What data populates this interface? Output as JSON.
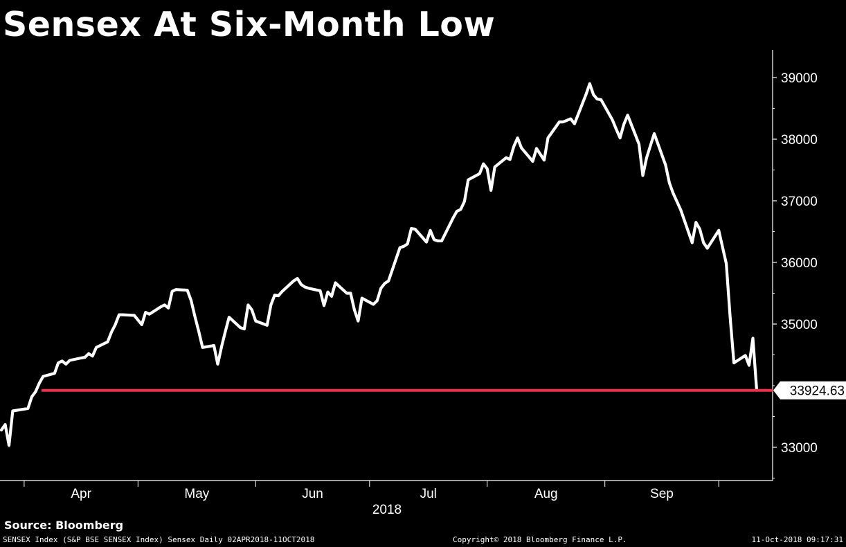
{
  "chart_data": {
    "type": "line",
    "title": "Sensex At Six-Month Low",
    "year_label": "2018",
    "x_tick_labels": [
      "Apr",
      "May",
      "Jun",
      "Jul",
      "Aug",
      "Sep"
    ],
    "y_tick_labels": [
      "39000",
      "38000",
      "37000",
      "36000",
      "35000",
      "33000"
    ],
    "ylim": [
      32500,
      39500
    ],
    "grid": false,
    "axis_side": "right",
    "series": [
      {
        "x": [
          "2018-03-26",
          "2018-03-27",
          "2018-03-28",
          "2018-03-29",
          "2018-04-02",
          "2018-04-03",
          "2018-04-04",
          "2018-04-05",
          "2018-04-06",
          "2018-04-09",
          "2018-04-10",
          "2018-04-11",
          "2018-04-12",
          "2018-04-13",
          "2018-04-16",
          "2018-04-17",
          "2018-04-18",
          "2018-04-19",
          "2018-04-20",
          "2018-04-23",
          "2018-04-24",
          "2018-04-25",
          "2018-04-26",
          "2018-04-27",
          "2018-04-30",
          "2018-05-02",
          "2018-05-03",
          "2018-05-04",
          "2018-05-07",
          "2018-05-08",
          "2018-05-09",
          "2018-05-10",
          "2018-05-11",
          "2018-05-14",
          "2018-05-15",
          "2018-05-16",
          "2018-05-17",
          "2018-05-18",
          "2018-05-21",
          "2018-05-22",
          "2018-05-23",
          "2018-05-24",
          "2018-05-25",
          "2018-05-28",
          "2018-05-29",
          "2018-05-30",
          "2018-05-31",
          "2018-06-01",
          "2018-06-04",
          "2018-06-05",
          "2018-06-06",
          "2018-06-07",
          "2018-06-08",
          "2018-06-11",
          "2018-06-12",
          "2018-06-13",
          "2018-06-14",
          "2018-06-15",
          "2018-06-18",
          "2018-06-19",
          "2018-06-20",
          "2018-06-21",
          "2018-06-22",
          "2018-06-25",
          "2018-06-26",
          "2018-06-27",
          "2018-06-28",
          "2018-06-29",
          "2018-07-02",
          "2018-07-03",
          "2018-07-04",
          "2018-07-05",
          "2018-07-06",
          "2018-07-09",
          "2018-07-10",
          "2018-07-11",
          "2018-07-12",
          "2018-07-13",
          "2018-07-16",
          "2018-07-17",
          "2018-07-18",
          "2018-07-19",
          "2018-07-20",
          "2018-07-23",
          "2018-07-24",
          "2018-07-25",
          "2018-07-26",
          "2018-07-27",
          "2018-07-30",
          "2018-07-31",
          "2018-08-01",
          "2018-08-02",
          "2018-08-03",
          "2018-08-06",
          "2018-08-07",
          "2018-08-08",
          "2018-08-09",
          "2018-08-10",
          "2018-08-13",
          "2018-08-14",
          "2018-08-16",
          "2018-08-17",
          "2018-08-20",
          "2018-08-21",
          "2018-08-23",
          "2018-08-24",
          "2018-08-27",
          "2018-08-28",
          "2018-08-29",
          "2018-08-30",
          "2018-08-31",
          "2018-09-03",
          "2018-09-04",
          "2018-09-05",
          "2018-09-06",
          "2018-09-07",
          "2018-09-10",
          "2018-09-11",
          "2018-09-12",
          "2018-09-14",
          "2018-09-17",
          "2018-09-18",
          "2018-09-19",
          "2018-09-21",
          "2018-09-24",
          "2018-09-25",
          "2018-09-26",
          "2018-09-27",
          "2018-09-28",
          "2018-10-01",
          "2018-10-03",
          "2018-10-04",
          "2018-10-05",
          "2018-10-08",
          "2018-10-09",
          "2018-10-10",
          "2018-10-11"
        ],
        "values": [
          33280,
          33370,
          33030,
          33590,
          33630,
          33820,
          33900,
          34040,
          34150,
          34200,
          34370,
          34400,
          34350,
          34410,
          34450,
          34460,
          34520,
          34480,
          34620,
          34710,
          34870,
          34990,
          35150,
          35150,
          35140,
          34990,
          35190,
          35160,
          35280,
          35310,
          35260,
          35530,
          35560,
          35550,
          35380,
          35120,
          34880,
          34620,
          34650,
          34350,
          34630,
          34880,
          35110,
          34940,
          34920,
          35310,
          35230,
          35050,
          34980,
          35310,
          35470,
          35460,
          35530,
          35700,
          35740,
          35640,
          35600,
          35580,
          35540,
          35300,
          35520,
          35450,
          35670,
          35500,
          35500,
          35230,
          35050,
          35420,
          35320,
          35380,
          35580,
          35660,
          35700,
          36240,
          36260,
          36300,
          36550,
          36540,
          36330,
          36520,
          36370,
          36350,
          36350,
          36720,
          36830,
          36860,
          36990,
          37340,
          37440,
          37600,
          37520,
          37170,
          37550,
          37700,
          37670,
          37880,
          38020,
          37860,
          37640,
          37850,
          37660,
          38020,
          38280,
          38280,
          38330,
          38250,
          38720,
          38900,
          38720,
          38650,
          38640,
          38310,
          38160,
          38020,
          38240,
          38390,
          37920,
          37410,
          37700,
          38090,
          37580,
          37290,
          37120,
          36850,
          36320,
          36650,
          36540,
          36320,
          36230,
          36520,
          35980,
          35120,
          34370,
          34490,
          34330,
          34770,
          33924.63
        ],
        "last_value": "33924.63"
      }
    ],
    "reference_line": {
      "value": 33924.63,
      "color": "#e8324a"
    },
    "line_color": "#ffffff"
  },
  "source": "Source: Bloomberg",
  "footer": {
    "left": "SENSEX Index (S&P BSE SENSEX Index) Sensex  Daily 02APR2018-11OCT2018",
    "center": "Copyright© 2018 Bloomberg Finance L.P.",
    "right": "11-Oct-2018 09:17:31"
  }
}
